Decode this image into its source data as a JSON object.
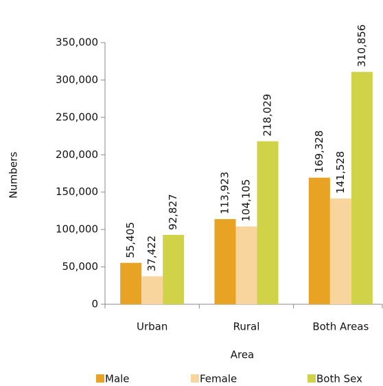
{
  "chart_data": {
    "type": "bar",
    "x_label": "Area",
    "y_label": "Numbers",
    "categories": [
      "Urban",
      "Rural",
      "Both Areas"
    ],
    "series": [
      {
        "name": "Male",
        "color": "#e9a324",
        "values": [
          55405,
          113923,
          169328
        ],
        "value_labels": [
          "55,405",
          "113,923",
          "169,328"
        ]
      },
      {
        "name": "Female",
        "color": "#f9d59e",
        "values": [
          37422,
          104105,
          141528
        ],
        "value_labels": [
          "37,422",
          "104,105",
          "141,528"
        ]
      },
      {
        "name": "Both Sex",
        "color": "#d0d248",
        "values": [
          92827,
          218029,
          310856
        ],
        "value_labels": [
          "92,827",
          "218,029",
          "310,856"
        ]
      }
    ],
    "ylim": [
      0,
      350000
    ],
    "yticks": [
      0,
      {
        "value": 50000,
        "label": "50,000"
      },
      {
        "value": 100000,
        "label": "100,000"
      },
      {
        "value": 150000,
        "label": "150,000"
      },
      {
        "value": 200000,
        "label": "200,000"
      },
      {
        "value": 250000,
        "label": "250,000"
      },
      {
        "value": 300000,
        "label": "300,000"
      },
      {
        "value": 350000,
        "label": "350,000"
      }
    ],
    "legend": "bottom"
  }
}
